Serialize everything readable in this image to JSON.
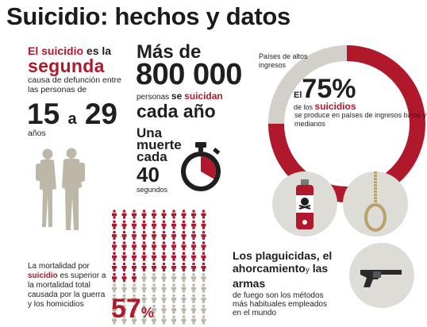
{
  "title": "Suicidio: hechos y datos",
  "left_block": {
    "line1_a": "El suicidio",
    "line1_b": " es la",
    "ranking": "segunda",
    "description": "causa de defunción entre las personas de",
    "age_from": "15",
    "age_connector": "a",
    "age_to": "29",
    "age_unit": "años"
  },
  "middle_block": {
    "more_than": "Más de",
    "count": "800 000",
    "people_a": "personas",
    "people_b": "se",
    "people_c": "suicidan",
    "per_year": "cada año",
    "one_death_each": "Una muerte cada",
    "seconds_value": "40",
    "seconds_unit": "segundos"
  },
  "donut": {
    "high_income": "Países de altos ingresos",
    "the": "El",
    "percent": "75%",
    "of_the": "de los",
    "suicides": "suicidios",
    "rest": "se produce en países de ingresos bajos y medianos",
    "share": 0.75,
    "colors": {
      "share": "#b0182b",
      "rest": "#d2d0c9"
    }
  },
  "mortality": {
    "text_a": "La mortalidad por",
    "text_b": "suicidio",
    "text_c": "es superior a la mortalidad total causada por la guerra y los homicidios",
    "percent": "57",
    "percent_sign": "%",
    "share": 0.57
  },
  "methods": {
    "heading_a": "Los plaguicidas, el ahorcamiento",
    "heading_y": "y",
    "heading_b": "las armas",
    "caption": "de fuego son los métodos más habituales empleados en el mundo",
    "icons": [
      "pesticide-spray-icon",
      "noose-icon",
      "revolver-icon"
    ]
  },
  "colors": {
    "accent": "#b0182b",
    "text": "#1f1f1f",
    "neutral": "#bcb7a6",
    "circle": "#dedcd6"
  }
}
